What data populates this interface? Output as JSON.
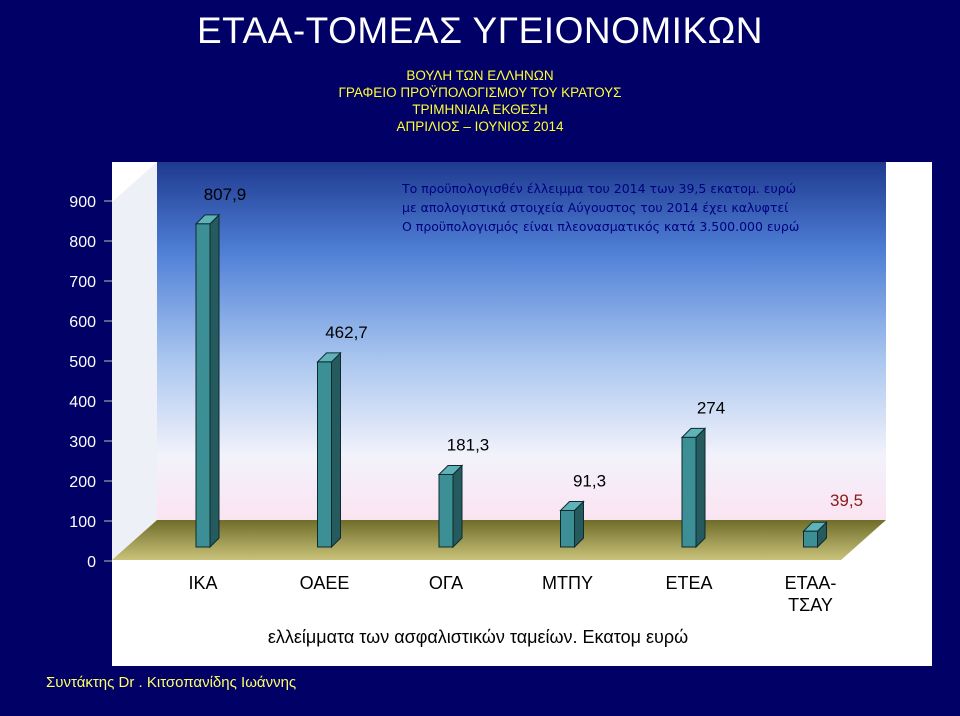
{
  "title": "ΕΤΑΑ-ΤΟΜΕΑΣ ΥΓΕΙΟΝΟΜΙΚΩΝ",
  "subtitle_lines": [
    "ΒΟΥΛΗ ΤΩΝ ΕΛΛΗΝΩΝ",
    "ΓΡΑΦΕΙΟ ΠΡΟΫΠΟΛΟΓΙΣΜΟΥ ΤΟΥ ΚΡΑΤΟΥΣ",
    "ΤΡΙΜΗΝΙΑΙΑ ΕΚΘΕΣΗ",
    "ΑΠΡΙΛΙΟΣ – ΙΟΥΝΙΟΣ 2014"
  ],
  "author": "Συντάκτης Dr . Κιτσοπανίδης Ιωάννης",
  "colors": {
    "page_background": "#000066",
    "title": "#ffffff",
    "subtitle": "#ffff33",
    "bar_front": "#3d8f96",
    "bar_side": "#255a5f",
    "bar_top": "#5fb2b8",
    "axis_text": "#ffffff",
    "special_label": "#8b1a1a"
  },
  "chart_data": {
    "type": "bar",
    "style": "3d-column",
    "categories": [
      "ΙΚΑ",
      "ΟΑΕΕ",
      "ΟΓΑ",
      "ΜΤΠΥ",
      "ΕΤΕΑ",
      "ΕΤΑΑ-ΤΣΑΥ"
    ],
    "values": [
      807.9,
      462.7,
      181.3,
      91.3,
      274,
      39.5
    ],
    "data_labels": [
      "807,9",
      "462,7",
      "181,3",
      "91,3",
      "274",
      "39,5"
    ],
    "highlighted_label_index": 5,
    "xlabel": "ελλείμματα των ασφαλιστικών ταμείων. Εκατομ ευρώ",
    "ylabel": "",
    "ylim": [
      0,
      900
    ],
    "yticks": [
      0,
      100,
      200,
      300,
      400,
      500,
      600,
      700,
      800,
      900
    ],
    "grid": false,
    "legend": "none",
    "annotation_lines": [
      "Το προϋπολογισθέν έλλειμμα του 2014 των 39,5 εκατομ. ευρώ",
      "με απολογιστικά στοιχεία Αύγουστος του 2014 έχει καλυφτεί",
      "Ο προϋπολογισμός είναι πλεονασματικός κατά 3.500.000 ευρώ"
    ]
  }
}
